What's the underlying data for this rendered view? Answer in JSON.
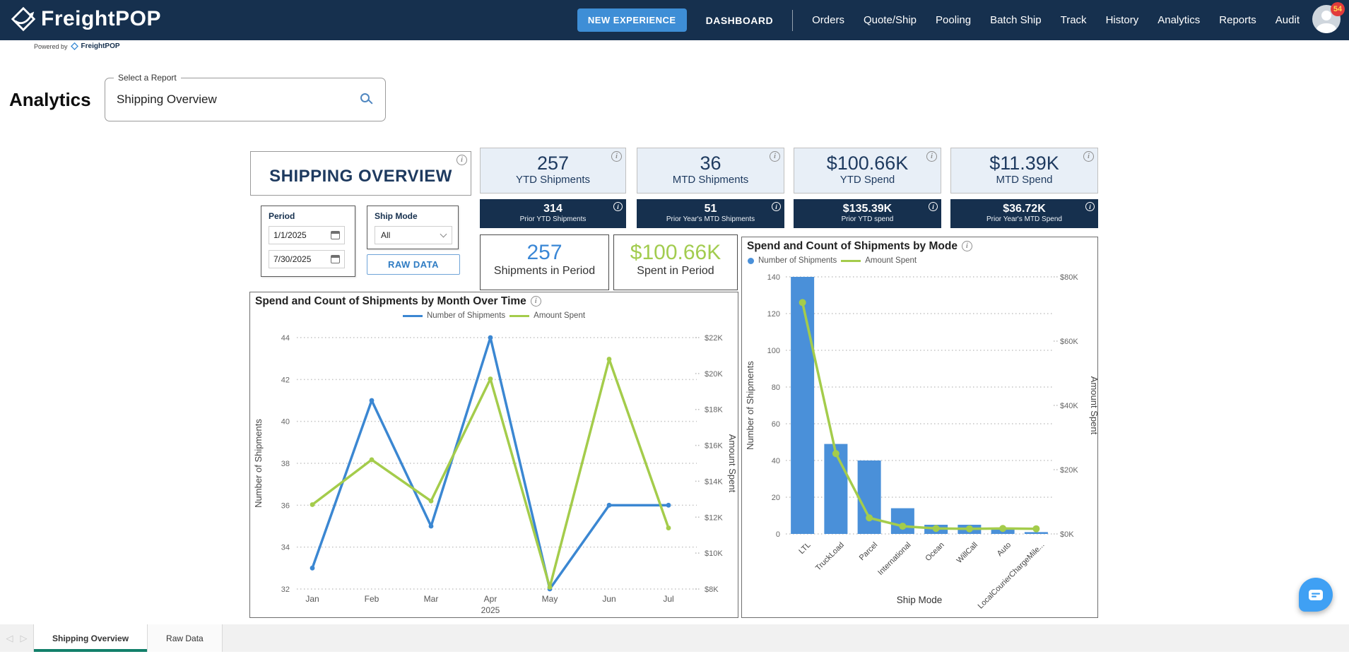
{
  "brand": {
    "logo_text": "FreightPOP",
    "powered_by_label": "Powered by",
    "powered_by_brand": "FreightPOP"
  },
  "navbar": {
    "new_experience": "NEW EXPERIENCE",
    "dashboard": "DASHBOARD",
    "items": [
      "Orders",
      "Quote/Ship",
      "Pooling",
      "Batch Ship",
      "Track",
      "History",
      "Analytics",
      "Reports",
      "Audit"
    ],
    "notification_count": "54"
  },
  "page": {
    "title": "Analytics"
  },
  "report_selector": {
    "label": "Select a Report",
    "value": "Shipping Overview"
  },
  "overview": {
    "title": "SHIPPING OVERVIEW",
    "kpis": [
      {
        "value": "257",
        "label": "YTD Shipments"
      },
      {
        "value": "36",
        "label": "MTD Shipments"
      },
      {
        "value": "$100.66K",
        "label": "YTD Spend"
      },
      {
        "value": "$11.39K",
        "label": "MTD Spend"
      }
    ],
    "prior_kpis": [
      {
        "value": "314",
        "label": "Prior YTD Shipments"
      },
      {
        "value": "51",
        "label": "Prior Year's MTD Shipments"
      },
      {
        "value": "$135.39K",
        "label": "Prior YTD spend"
      },
      {
        "value": "$36.72K",
        "label": "Prior Year's MTD Spend"
      }
    ],
    "period": {
      "label": "Period",
      "start": "1/1/2025",
      "end": "7/30/2025"
    },
    "ship_mode": {
      "label": "Ship Mode",
      "value": "All"
    },
    "raw_data_button": "RAW DATA",
    "period_kpis": [
      {
        "value": "257",
        "label": "Shipments in Period"
      },
      {
        "value": "$100.66K",
        "label": "Spent in Period"
      }
    ]
  },
  "chart_data": [
    {
      "type": "line",
      "title": "Spend and Count of Shipments by Month Over Time",
      "x": [
        "Jan",
        "Feb",
        "Mar",
        "Apr",
        "May",
        "Jun",
        "Jul"
      ],
      "x_sub_label": {
        "index": 3,
        "text": "2025"
      },
      "series": [
        {
          "name": "Number of Shipments",
          "axis": "left",
          "color": "#3b87d2",
          "values": [
            33,
            41,
            35,
            44,
            32,
            36,
            36
          ]
        },
        {
          "name": "Amount Spent",
          "axis": "right",
          "color": "#a4cc4b",
          "values": [
            12700,
            15200,
            12900,
            19700,
            8100,
            20800,
            11400
          ]
        }
      ],
      "left_axis": {
        "label": "Number of Shipments",
        "min": 32,
        "max": 44,
        "ticks": [
          32,
          34,
          36,
          38,
          40,
          42,
          44
        ]
      },
      "right_axis": {
        "label": "Amount Spent",
        "min": 8000,
        "max": 22000,
        "ticks": [
          "$8K",
          "$10K",
          "$12K",
          "$14K",
          "$16K",
          "$18K",
          "$20K",
          "$22K"
        ]
      },
      "grid": "dotted",
      "legend_position": "top-center"
    },
    {
      "type": "bar",
      "title": "Spend and Count of Shipments by Mode",
      "categories": [
        "LTL",
        "TruckLoad",
        "Parcel",
        "International",
        "Ocean",
        "WillCall",
        "Auto",
        "LocalCourierChargeMile..."
      ],
      "series": [
        {
          "name": "Number of Shipments",
          "type": "bar",
          "axis": "left",
          "color": "#4a90d9",
          "values": [
            140,
            49,
            40,
            14,
            5,
            5,
            3,
            1
          ]
        },
        {
          "name": "Amount Spent",
          "type": "line",
          "axis": "right",
          "color": "#a4cc4b",
          "values": [
            72000,
            25000,
            5000,
            2400,
            1700,
            1600,
            1700,
            1600
          ]
        }
      ],
      "left_axis": {
        "label": "Number of Shipments",
        "min": 0,
        "max": 140,
        "ticks": [
          0,
          20,
          40,
          60,
          80,
          100,
          120,
          140
        ]
      },
      "right_axis": {
        "label": "Amount Spent",
        "min": 0,
        "max": 80000,
        "ticks": [
          "$0K",
          "$20K",
          "$40K",
          "$60K",
          "$80K"
        ]
      },
      "xlabel": "Ship Mode",
      "grid": "dotted",
      "legend_position": "top-left"
    }
  ],
  "tabs": {
    "items": [
      {
        "label": "Shipping Overview"
      },
      {
        "label": "Raw Data"
      }
    ]
  },
  "icons": {
    "search": "magnifier",
    "calendar": "calendar",
    "chevron_down": "chevron",
    "info": "i",
    "tab_nav_left": "◁",
    "tab_nav_right": "▷",
    "chat": "speech-bubble",
    "user": "person-silhouette"
  },
  "colors": {
    "navbar_bg": "#16304e",
    "accent_blue": "#3e8ed6",
    "kpi_card_bg": "#e8eff7",
    "navy_text": "#1e3a5f",
    "shipments_blue": "#3a87d6",
    "spend_green": "#a2cc4f",
    "tab_active_underline": "#12806a",
    "badge_red": "#e23b3b",
    "chat_blue": "#3fa0f4"
  }
}
